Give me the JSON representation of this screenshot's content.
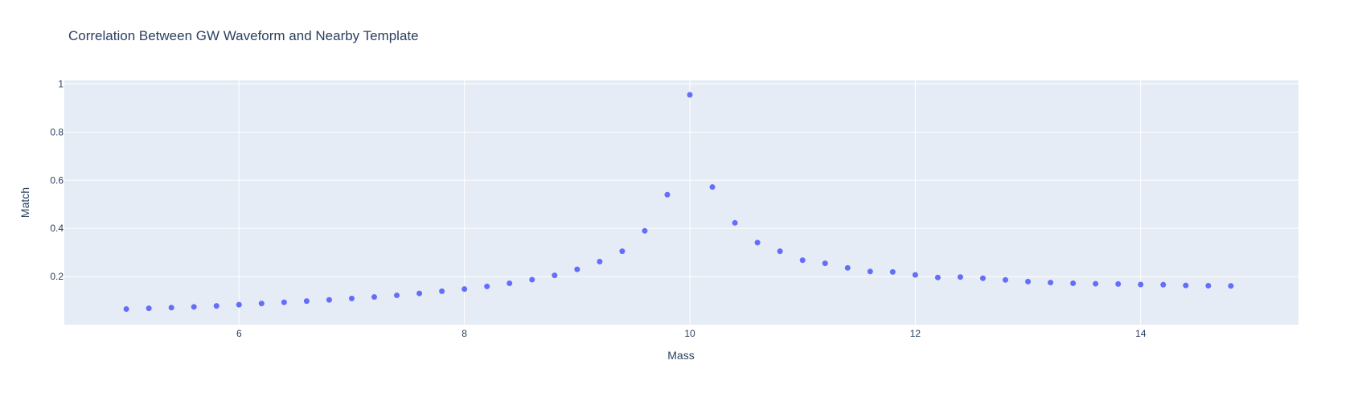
{
  "chart_data": {
    "type": "scatter",
    "title": "Correlation Between GW Waveform and Nearby Template",
    "xlabel": "Mass",
    "ylabel": "Match",
    "xlim": [
      4.45,
      15.4
    ],
    "ylim": [
      0.0,
      1.015
    ],
    "x_ticks": [
      6,
      8,
      10,
      12,
      14
    ],
    "y_ticks": [
      0.2,
      0.4,
      0.6,
      0.8,
      1
    ],
    "grid": true,
    "legend": "none",
    "colors": {
      "marker": "#636efa",
      "plot_bg": "#e5ecf6",
      "grid": "#ffffff",
      "text": "#2a3f5f"
    },
    "x": [
      5.0,
      5.2,
      5.4,
      5.6,
      5.8,
      6.0,
      6.2,
      6.4,
      6.6,
      6.8,
      7.0,
      7.2,
      7.4,
      7.6,
      7.8,
      8.0,
      8.2,
      8.4,
      8.6,
      8.8,
      9.0,
      9.2,
      9.4,
      9.6,
      9.8,
      10.0,
      10.2,
      10.4,
      10.6,
      10.8,
      11.0,
      11.2,
      11.4,
      11.6,
      11.8,
      12.0,
      12.2,
      12.4,
      12.6,
      12.8,
      13.0,
      13.2,
      13.4,
      13.6,
      13.8,
      14.0,
      14.2,
      14.4,
      14.6,
      14.8
    ],
    "y": [
      0.065,
      0.068,
      0.071,
      0.074,
      0.078,
      0.083,
      0.088,
      0.093,
      0.098,
      0.103,
      0.109,
      0.115,
      0.122,
      0.13,
      0.139,
      0.148,
      0.159,
      0.172,
      0.187,
      0.205,
      0.23,
      0.262,
      0.305,
      0.39,
      0.54,
      0.955,
      0.572,
      0.423,
      0.341,
      0.305,
      0.268,
      0.255,
      0.236,
      0.221,
      0.219,
      0.207,
      0.196,
      0.198,
      0.193,
      0.186,
      0.179,
      0.175,
      0.172,
      0.17,
      0.169,
      0.167,
      0.166,
      0.163,
      0.162,
      0.161
    ]
  }
}
